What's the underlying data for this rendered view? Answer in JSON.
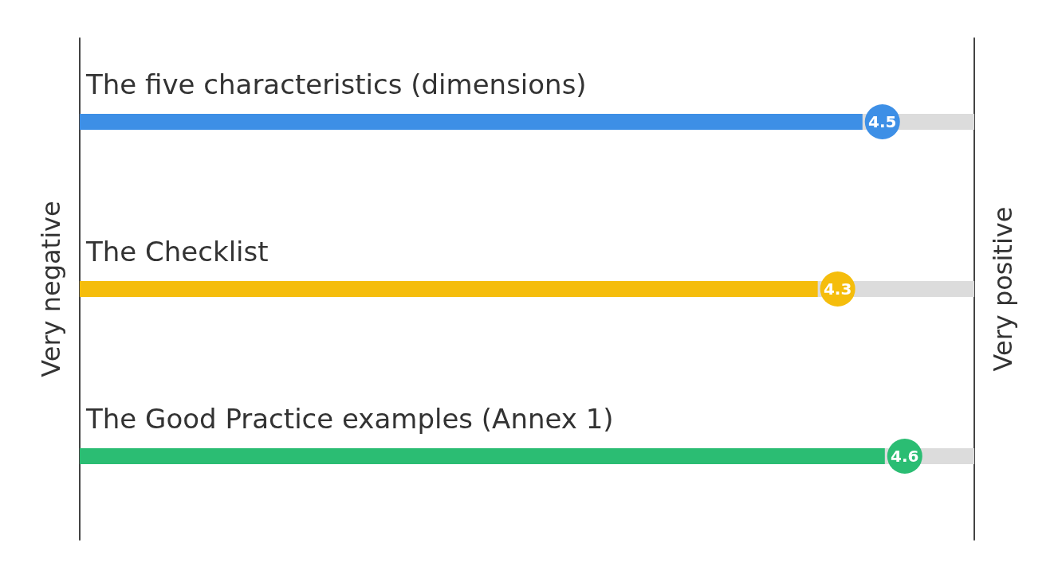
{
  "chart_data": {
    "type": "bar",
    "orientation": "horizontal",
    "categories": [
      "The five characteristics (dimensions)",
      "The Checklist",
      "The Good Practice examples (Annex 1)"
    ],
    "values": [
      4.5,
      4.3,
      4.6
    ],
    "colors": [
      "#3d8fe6",
      "#f5bd0c",
      "#2bbd73"
    ],
    "xlim": [
      1,
      5
    ],
    "annotations": [
      "Very negative",
      "Very positive"
    ],
    "data_labels": true
  }
}
